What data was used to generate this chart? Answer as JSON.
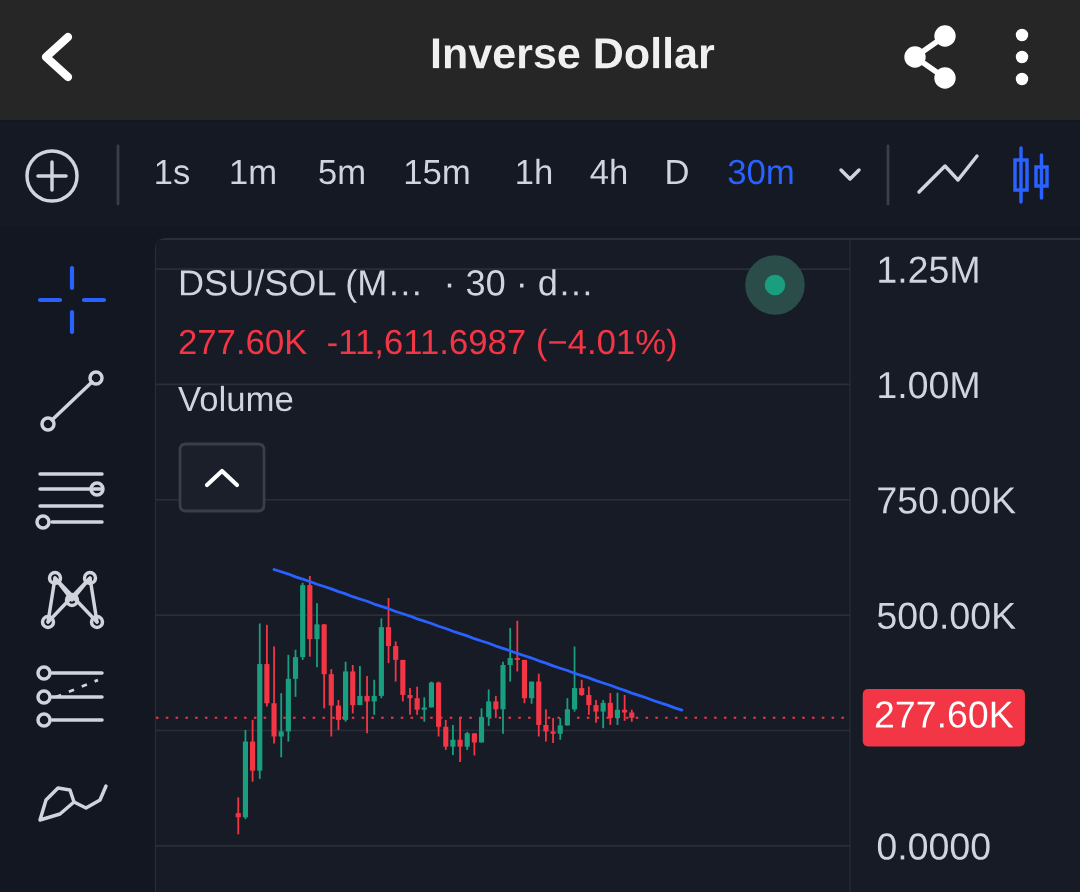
{
  "chart_data": {
    "type": "candlestick",
    "title": "Inverse Dollar",
    "subtitle": "DSU/SOL (M…  · 30 · d…",
    "annotations": [
      "1s",
      "1m",
      "5m",
      "15m",
      "1h",
      "4h",
      "D",
      "30m",
      "277.60K  -11,611.6987 (−4.01%)",
      "Volume"
    ],
    "categories": [
      null,
      null,
      null,
      null,
      null,
      null,
      null,
      null,
      null,
      null,
      null,
      null,
      null,
      null,
      null,
      null,
      null,
      null,
      null,
      null,
      null,
      null,
      null,
      null,
      null,
      null,
      null,
      null,
      null,
      null,
      null,
      null,
      null,
      null,
      null,
      null,
      null,
      null,
      null,
      null,
      null,
      null,
      null,
      null,
      null,
      null,
      null,
      null,
      null,
      null,
      null,
      null,
      null,
      null,
      null,
      null,
      null,
      null,
      null,
      null,
      null,
      null,
      null,
      null,
      null,
      null,
      null,
      null,
      null,
      null,
      null,
      null,
      null,
      null,
      null,
      null,
      null,
      null,
      null,
      null,
      null,
      null,
      null,
      null,
      null,
      null,
      null,
      null,
      null,
      null,
      null,
      null,
      null,
      null,
      null,
      null,
      null
    ],
    "ohlc": [
      null,
      null,
      null,
      null,
      null,
      null,
      null,
      null,
      null,
      null,
      null,
      [
        71000,
        105000,
        25000,
        62000
      ],
      [
        62000,
        251000,
        58000,
        226000
      ],
      [
        226000,
        273000,
        139000,
        163000
      ],
      [
        163000,
        482000,
        145000,
        394000
      ],
      [
        394000,
        479000,
        302000,
        309000
      ],
      [
        309000,
        432000,
        222000,
        237000
      ],
      [
        237000,
        331000,
        192000,
        248000
      ],
      [
        248000,
        414000,
        226000,
        362000
      ],
      [
        362000,
        425000,
        323000,
        409000
      ],
      [
        409000,
        570000,
        403000,
        565000
      ],
      [
        565000,
        585000,
        410000,
        448000
      ],
      [
        448000,
        526000,
        387000,
        480000
      ],
      [
        480000,
        481000,
        298000,
        372000
      ],
      [
        372000,
        383000,
        237000,
        304000
      ],
      [
        304000,
        316000,
        251000,
        273000
      ],
      [
        273000,
        399000,
        269000,
        378000
      ],
      [
        378000,
        392000,
        287000,
        305000
      ],
      [
        305000,
        390000,
        305000,
        325000
      ],
      [
        325000,
        368000,
        244000,
        313000
      ],
      [
        313000,
        360000,
        284000,
        325000
      ],
      [
        325000,
        493000,
        320000,
        474000
      ],
      [
        474000,
        537000,
        396000,
        433000
      ],
      [
        433000,
        443000,
        356000,
        403000
      ],
      [
        403000,
        403000,
        313000,
        327000
      ],
      [
        327000,
        342000,
        284000,
        320000
      ],
      [
        320000,
        345000,
        284000,
        295000
      ],
      [
        295000,
        322000,
        269000,
        300000
      ],
      [
        300000,
        356000,
        300000,
        354000
      ],
      [
        354000,
        356000,
        237000,
        258000
      ],
      [
        258000,
        273000,
        208000,
        215000
      ],
      [
        215000,
        262000,
        197000,
        230000
      ],
      [
        230000,
        280000,
        182000,
        215000
      ],
      [
        215000,
        247000,
        208000,
        244000
      ],
      [
        244000,
        244000,
        196000,
        224000
      ],
      [
        224000,
        298000,
        224000,
        279000
      ],
      [
        279000,
        339000,
        260000,
        313000
      ],
      [
        313000,
        325000,
        277000,
        296000
      ],
      [
        296000,
        399000,
        243000,
        392000
      ],
      [
        392000,
        472000,
        356000,
        407000
      ],
      [
        407000,
        488000,
        378000,
        403000
      ],
      [
        403000,
        403000,
        309000,
        320000
      ],
      [
        320000,
        356000,
        308000,
        356000
      ],
      [
        356000,
        373000,
        237000,
        262000
      ],
      [
        262000,
        296000,
        226000,
        248000
      ],
      [
        248000,
        277000,
        223000,
        243000
      ],
      [
        243000,
        277000,
        230000,
        261000
      ],
      [
        261000,
        320000,
        261000,
        296000
      ],
      [
        296000,
        432000,
        291000,
        342000
      ],
      [
        342000,
        360000,
        325000,
        327000
      ],
      [
        327000,
        345000,
        284000,
        305000
      ],
      [
        305000,
        316000,
        267000,
        291000
      ],
      [
        291000,
        316000,
        255000,
        310000
      ],
      [
        310000,
        331000,
        262000,
        277000
      ],
      [
        277000,
        332000,
        262000,
        295000
      ],
      [
        295000,
        327000,
        271000,
        289000
      ],
      [
        289000,
        295000,
        269000,
        277600
      ],
      null,
      null,
      null,
      null,
      null,
      null,
      null,
      null,
      null,
      null,
      null,
      null,
      null,
      null,
      null,
      null,
      null,
      null,
      null,
      null,
      null,
      null,
      null,
      null,
      null,
      null,
      null,
      null,
      null,
      null
    ],
    "colors": [
      null,
      null,
      null,
      null,
      null,
      null,
      null,
      null,
      null,
      null,
      null,
      "#f23645",
      "#199e80",
      "#f23645",
      "#199e80",
      "#f23645",
      "#f23645",
      "#199e80",
      "#199e80",
      "#199e80",
      "#199e80",
      "#f23645",
      "#199e80",
      "#f23645",
      "#f23645",
      "#f23645",
      "#199e80",
      "#f23645",
      "#199e80",
      "#f23645",
      "#199e80",
      "#199e80",
      "#f23645",
      "#f23645",
      "#f23645",
      "#f23645",
      "#f23645",
      "#199e80",
      "#199e80",
      "#f23645",
      "#f23645",
      "#199e80",
      "#f23645",
      "#199e80",
      "#f23645",
      "#199e80",
      "#199e80",
      "#f23645",
      "#199e80",
      "#199e80",
      "#f23645",
      "#f23645",
      "#199e80",
      "#f23645",
      "#f23645",
      "#f23645",
      "#199e80",
      "#199e80",
      "#199e80",
      "#f23645",
      "#f23645",
      "#f23645",
      "#199e80",
      "#f23645",
      "#199e80",
      "#f23645",
      "#f23645",
      null,
      null,
      null,
      null,
      null,
      null,
      null,
      null,
      null,
      null,
      null,
      null,
      null,
      null,
      null,
      null,
      null,
      null,
      null,
      null,
      null,
      null,
      null,
      null,
      null,
      null,
      null,
      null,
      null,
      null
    ],
    "series": [
      {
        "type": "line",
        "color": "#2962ff",
        "values": [
          null,
          null,
          null,
          null,
          null,
          null,
          null,
          null,
          null,
          null,
          null,
          null,
          null,
          null,
          null,
          null,
          599000,
          594000,
          589000,
          583000,
          578000,
          573000,
          567000,
          562000,
          557000,
          551000,
          546000,
          540000,
          535000,
          530000,
          524000,
          519000,
          514000,
          508000,
          503000,
          498000,
          492000,
          487000,
          482000,
          476000,
          471000,
          465000,
          460000,
          455000,
          449000,
          444000,
          439000,
          433000,
          428000,
          423000,
          417000,
          412000,
          407000,
          401000,
          396000,
          390000,
          385000,
          380000,
          374000,
          369000,
          364000,
          358000,
          353000,
          348000,
          342000,
          337000,
          331000,
          326000,
          321000,
          315000,
          310000,
          305000,
          299000,
          294000,
          null,
          null,
          null,
          null,
          null,
          null,
          null,
          null,
          null,
          null,
          null,
          null,
          null,
          null,
          null,
          null,
          null,
          null,
          null,
          null,
          null,
          null,
          null
        ]
      }
    ],
    "ylim": [
      -100000,
      1313000
    ],
    "yticks": [
      {
        "value": 0,
        "label": "0.0000"
      },
      {
        "value": 250000,
        "label": null
      },
      {
        "value": 500000,
        "label": "500.00K"
      },
      {
        "value": 750000,
        "label": "750.00K"
      },
      {
        "value": 1000000,
        "label": "1.00M"
      },
      {
        "value": 1250000,
        "label": "1.25M"
      }
    ],
    "tick_labels": "y",
    "grid": "y",
    "ref_lines": [
      {
        "axis": "y",
        "value": 277600,
        "label": "277.60K",
        "color": "#f23645",
        "line_style": "dotted"
      }
    ]
  }
}
